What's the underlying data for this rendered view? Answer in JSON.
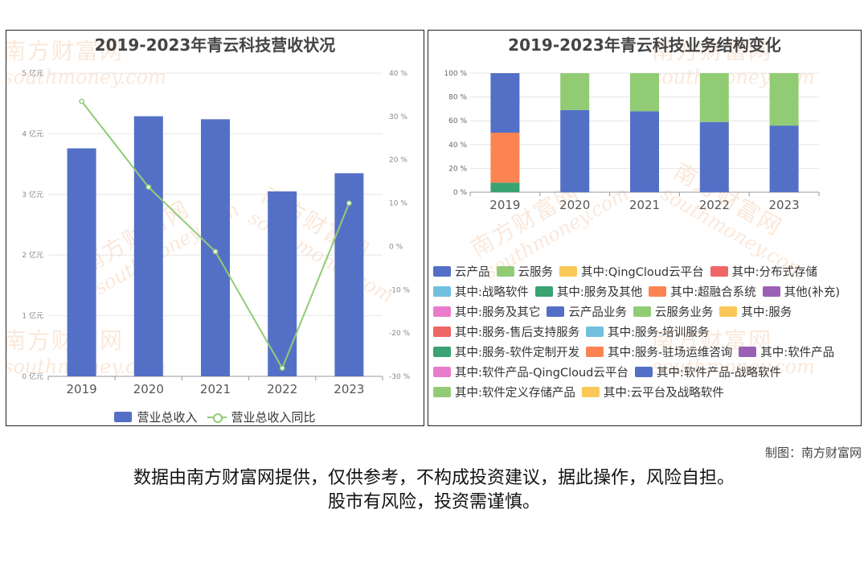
{
  "left_chart_title": "2019-2023年青云科技营收状况",
  "right_chart_title": "2019-2023年青云科技业务结构变化",
  "watermark": {
    "cn": "南方财富网",
    "en": "southmoney.com"
  },
  "credit": "制图：南方财富网",
  "disclaimer": {
    "line1": "数据由南方财富网提供，仅供参考，不构成投资建议，据此操作，风险自担。",
    "line2": "股市有风险，投资需谨慎。"
  },
  "chart_data": [
    {
      "type": "bar",
      "title": "2019-2023年青云科技营收状况",
      "categories": [
        "2019",
        "2020",
        "2021",
        "2022",
        "2023"
      ],
      "series": [
        {
          "name": "营业总收入",
          "type": "bar",
          "axis": "left",
          "color": "#5470c6",
          "values": [
            3.76,
            4.29,
            4.24,
            3.05,
            3.35
          ]
        },
        {
          "name": "营业总收入同比",
          "type": "line",
          "axis": "right",
          "color": "#91cc75",
          "values": [
            33.5,
            13.7,
            -1.2,
            -28.1,
            10.0
          ]
        }
      ],
      "y_left": {
        "min": 0,
        "max": 5,
        "step": 1,
        "unit": "亿元",
        "ticks": [
          "0 亿元",
          "1 亿元",
          "2 亿元",
          "3 亿元",
          "4 亿元",
          "5 亿元"
        ]
      },
      "y_right": {
        "min": -30,
        "max": 40,
        "step": 10,
        "unit": "%",
        "ticks": [
          "-30 %",
          "-20 %",
          "-10 %",
          "0 %",
          "10 %",
          "20 %",
          "30 %",
          "40 %"
        ]
      },
      "grid": true,
      "legend_position": "bottom"
    },
    {
      "type": "bar",
      "stacked": true,
      "title": "2019-2023年青云科技业务结构变化",
      "categories": [
        "2019",
        "2020",
        "2021",
        "2022",
        "2023"
      ],
      "y": {
        "min": 0,
        "max": 100,
        "step": 20,
        "ticks": [
          "0 %",
          "20 %",
          "40 %",
          "60 %",
          "80 %",
          "100 %"
        ]
      },
      "series": [
        {
          "name": "其中:服务及其他",
          "color": "#3ba272",
          "values": [
            8,
            0,
            0,
            0,
            0
          ]
        },
        {
          "name": "其中:超融合系统",
          "color": "#fc8452",
          "values": [
            42,
            0,
            0,
            0,
            0
          ]
        },
        {
          "name": "云产品",
          "color": "#5470c6",
          "values": [
            50,
            69,
            68,
            59,
            56
          ]
        },
        {
          "name": "云服务",
          "color": "#91cc75",
          "values": [
            0,
            31,
            32,
            41,
            44
          ]
        }
      ],
      "grid": true,
      "legend_position": "bottom",
      "legend": [
        {
          "name": "云产品",
          "color": "#5470c6"
        },
        {
          "name": "云服务",
          "color": "#91cc75"
        },
        {
          "name": "其中:QingCloud云平台",
          "color": "#fac858"
        },
        {
          "name": "其中:分布式存储",
          "color": "#ee6666"
        },
        {
          "name": "其中:战略软件",
          "color": "#73c0de"
        },
        {
          "name": "其中:服务及其他",
          "color": "#3ba272"
        },
        {
          "name": "其中:超融合系统",
          "color": "#fc8452"
        },
        {
          "name": "其他(补充)",
          "color": "#9a60b4"
        },
        {
          "name": "其中:服务及其它",
          "color": "#ea7ccc"
        },
        {
          "name": "云产品业务",
          "color": "#5470c6"
        },
        {
          "name": "云服务业务",
          "color": "#91cc75"
        },
        {
          "name": "其中:服务",
          "color": "#fac858"
        },
        {
          "name": "其中:服务-售后支持服务",
          "color": "#ee6666"
        },
        {
          "name": "其中:服务-培训服务",
          "color": "#73c0de"
        },
        {
          "name": "其中:服务-软件定制开发",
          "color": "#3ba272"
        },
        {
          "name": "其中:服务-驻场运维咨询",
          "color": "#fc8452"
        },
        {
          "name": "其中:软件产品",
          "color": "#9a60b4"
        },
        {
          "name": "其中:软件产品-QingCloud云平台",
          "color": "#ea7ccc"
        },
        {
          "name": "其中:软件产品-战略软件",
          "color": "#5470c6"
        },
        {
          "name": "其中:软件定义存储产品",
          "color": "#91cc75"
        },
        {
          "name": "其中:云平台及战略软件",
          "color": "#fac858"
        }
      ]
    }
  ]
}
